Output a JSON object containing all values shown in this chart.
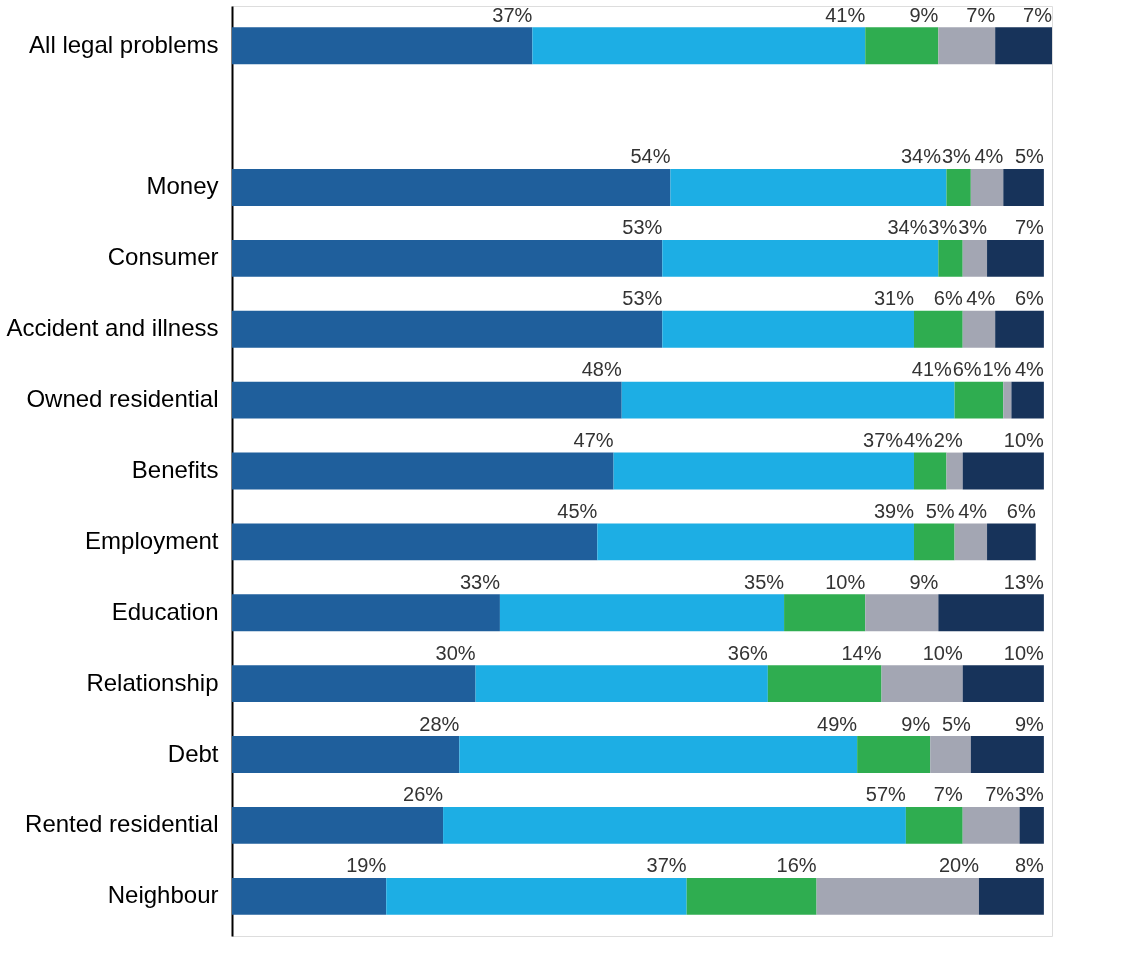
{
  "chart_data": {
    "type": "bar",
    "orientation": "horizontal",
    "stacked": true,
    "legend": false,
    "grid": false,
    "categories": [
      "All legal problems",
      null,
      "Money",
      "Consumer",
      "Accident and illness",
      "Owned residential",
      "Benefits",
      "Employment",
      "Education",
      "Relationship",
      "Debt",
      "Rented residential",
      "Neighbour"
    ],
    "series": [
      {
        "color": "#1f5f9c",
        "values": [
          37,
          null,
          54,
          53,
          53,
          48,
          47,
          45,
          33,
          30,
          28,
          26,
          19
        ],
        "value_labels": [
          "37%",
          null,
          "54%",
          "53%",
          "53%",
          "48%",
          "47%",
          "45%",
          "33%",
          "30%",
          "28%",
          "26%",
          "19%"
        ]
      },
      {
        "color": "#1daee4",
        "values": [
          41,
          null,
          34,
          34,
          31,
          41,
          37,
          39,
          35,
          36,
          49,
          57,
          37
        ],
        "value_labels": [
          "41%",
          null,
          "34%",
          "34%",
          "31%",
          "41%",
          "37%",
          "39%",
          "35%",
          "36%",
          "49%",
          "57%",
          "37%"
        ]
      },
      {
        "color": "#2fad50",
        "values": [
          9,
          null,
          3,
          3,
          6,
          6,
          4,
          5,
          10,
          14,
          9,
          7,
          16
        ],
        "value_labels": [
          "9%",
          null,
          "3%",
          "3%",
          "6%",
          "6%",
          "4%",
          "5%",
          "10%",
          "14%",
          "9%",
          "7%",
          "16%"
        ]
      },
      {
        "color": "#a3a6b3",
        "values": [
          7,
          null,
          4,
          3,
          4,
          1,
          2,
          4,
          9,
          10,
          5,
          7,
          20
        ],
        "value_labels": [
          "7%",
          null,
          "4%",
          "3%",
          "4%",
          "1%",
          "2%",
          "4%",
          "9%",
          "10%",
          "5%",
          "7%",
          "20%"
        ]
      },
      {
        "color": "#17335a",
        "values": [
          7,
          null,
          5,
          7,
          6,
          4,
          10,
          6,
          13,
          10,
          9,
          3,
          8
        ],
        "value_labels": [
          "7%",
          null,
          "5%",
          "7%",
          "6%",
          "4%",
          "10%",
          "6%",
          "13%",
          "10%",
          "9%",
          "3%",
          "8%"
        ]
      }
    ]
  }
}
